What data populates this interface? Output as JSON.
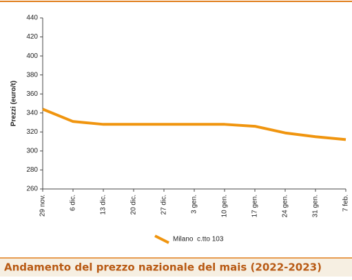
{
  "chart_data": {
    "type": "line",
    "title": "Andamento del prezzo nazionale del mais (2022-2023)",
    "y_label": "Prezzi (euro/t)",
    "categories": [
      "29 nov.",
      "6 dic.",
      "13 dic.",
      "20 dic.",
      "27 dic.",
      "3 gen.",
      "10 gen.",
      "17 gen.",
      "24 gen.",
      "31 gen.",
      "7 feb."
    ],
    "series": [
      {
        "name": "Milano  c.tto 103",
        "color": "#f0950f",
        "values": [
          344,
          331,
          328,
          328,
          328,
          328,
          328,
          326,
          319,
          315,
          312
        ]
      }
    ],
    "ylim": [
      260,
      440
    ],
    "yticks": [
      260,
      280,
      300,
      320,
      340,
      360,
      380,
      400,
      420,
      440
    ],
    "grid": false
  }
}
